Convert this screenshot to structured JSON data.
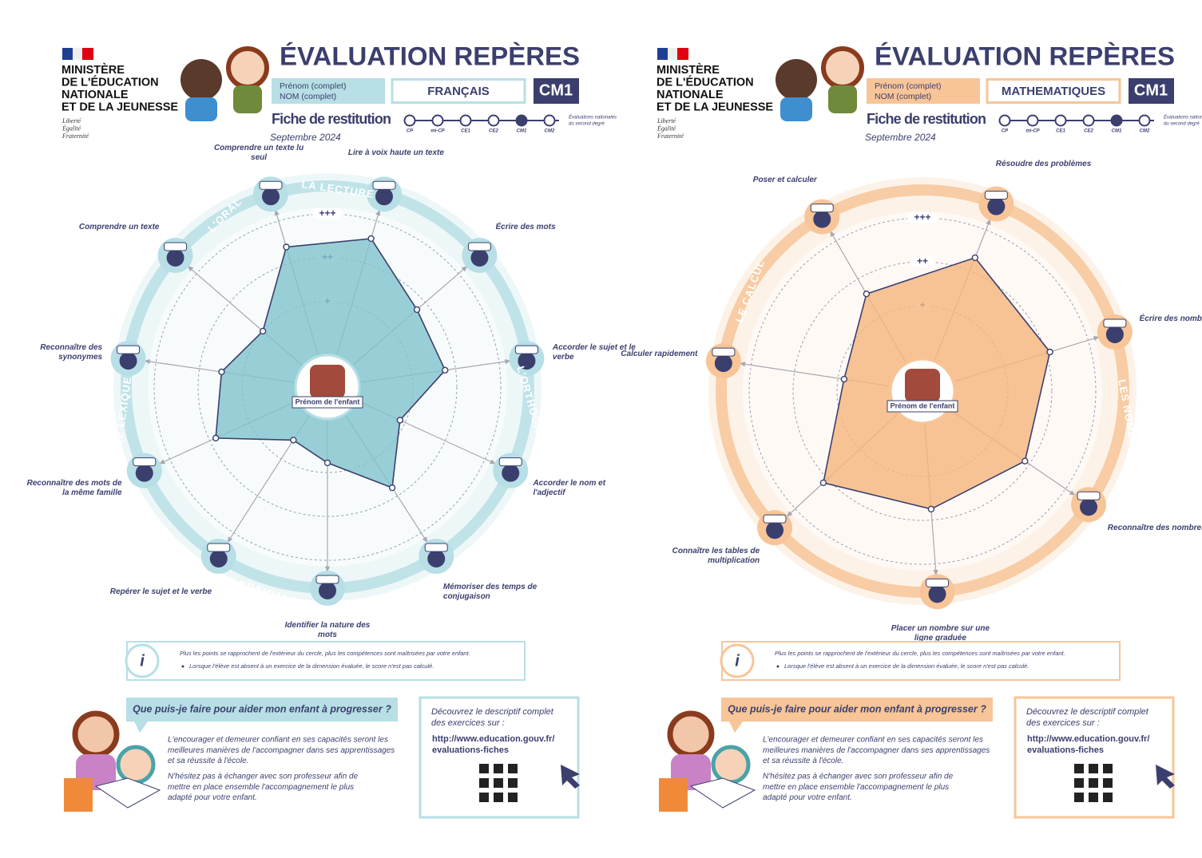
{
  "chart_data": [
    {
      "type": "radar",
      "categories": [
        "Comprendre un texte lu seul",
        "Lire à voix haute un texte",
        "Écrire des mots",
        "Accorder le sujet et le verbe",
        "Accorder le nom et l'adjectif",
        "Mémoriser des temps de conjugaison",
        "Identifier la nature des mots",
        "Repérer le sujet et le verbe",
        "Reconnaître des mots de la même famille",
        "Reconnaître des synonymes",
        "Comprendre un texte"
      ],
      "values": [
        2.38,
        2.58,
        1.75,
        1.76,
        0.87,
        1.78,
        0.78,
        0.49,
        1.85,
        1.49,
        1.0
      ],
      "rlim": [
        0,
        3
      ],
      "rticks": [
        {
          "value": 1,
          "label": "+"
        },
        {
          "value": 2,
          "label": "++"
        },
        {
          "value": 3,
          "label": "+++"
        }
      ],
      "groups": [
        "LA LECTURE",
        "L'ORAL",
        "L'ORTHOGRAPHE",
        "LA GRAMMAIRE",
        "LE LEXIQUE"
      ],
      "center_label": "Prénom de l'enfant",
      "color": "#7fc4cc",
      "line_color": "#3b3f6e",
      "accent": "#b7dfe5",
      "background": "#eef7f8"
    },
    {
      "type": "radar",
      "categories": [
        "Résoudre des problèmes",
        "Écrire des nombres",
        "Reconnaître des nombres",
        "Placer un nombre sur une ligne graduée",
        "Connaître les tables de multiplication",
        "Calculer rapidement",
        "Poser et calculer"
      ],
      "values": [
        2.32,
        2.09,
        1.88,
        1.75,
        2.13,
        0.86,
        1.61
      ],
      "rlim": [
        0,
        3
      ],
      "rticks": [
        {
          "value": 1,
          "label": "+"
        },
        {
          "value": 2,
          "label": "++"
        },
        {
          "value": 3,
          "label": "+++"
        }
      ],
      "groups": [
        "LE CALCUL",
        "LES NOMBRES"
      ],
      "center_label": "Prénom de l'enfant",
      "color": "#f5b57d",
      "line_color": "#3b3f6e",
      "accent": "#f7c598",
      "background": "#fdf2e8"
    }
  ],
  "sheets": [
    {
      "ministry": [
        "MINISTÈRE",
        "DE L'ÉDUCATION",
        "NATIONALE",
        "ET DE LA JEUNESSE"
      ],
      "motto": [
        "Liberté",
        "Égalité",
        "Fraternité"
      ],
      "title": "ÉVALUATION REPÈRES",
      "name_fields": [
        "Prénom (complet)",
        "NOM (complet)"
      ],
      "subject": "FRANÇAIS",
      "level": "CM1",
      "sheet_label": "Fiche de restitution",
      "timeline": [
        "CP",
        "mi-CP",
        "CE1",
        "CE2",
        "CM1",
        "CM2"
      ],
      "timeline_note": [
        "Évaluations nationales",
        "du second degré"
      ],
      "date": "Septembre 2024",
      "info": [
        "Plus les points se rapprochent de l'extérieur du cercle, plus les compétences sont maîtrisées par votre enfant.",
        "Lorsque l'élève est absent à un exercice de la dimension évaluée, le score n'est pas calculé."
      ],
      "question": "Que puis-je faire pour aider mon enfant à progresser ?",
      "advice": [
        [
          "L'encourager et demeurer confiant en ses capacités seront les",
          "meilleures manières de l'accompagner dans ses apprentissages",
          "et sa réussite à l'école."
        ],
        [
          "N'hésitez pas à échanger avec son professeur afin de",
          "mettre en place ensemble l'accompagnement le plus",
          "adapté pour votre enfant."
        ]
      ],
      "link_intro": [
        "Découvrez le descriptif complet",
        "des exercices sur :"
      ],
      "link": [
        "http://www.education.gouv.fr/",
        "evaluations-fiches"
      ]
    },
    {
      "ministry": [
        "MINISTÈRE",
        "DE L'ÉDUCATION",
        "NATIONALE",
        "ET DE LA JEUNESSE"
      ],
      "motto": [
        "Liberté",
        "Égalité",
        "Fraternité"
      ],
      "title": "ÉVALUATION REPÈRES",
      "name_fields": [
        "Prénom (complet)",
        "NOM (complet)"
      ],
      "subject": "MATHEMATIQUES",
      "level": "CM1",
      "sheet_label": "Fiche de restitution",
      "timeline": [
        "CP",
        "mi-CP",
        "CE1",
        "CE2",
        "CM1",
        "CM2"
      ],
      "timeline_note": [
        "Évaluations nationales",
        "du second degré"
      ],
      "date": "Septembre 2024",
      "info": [
        "Plus les points se rapprochent de l'extérieur du cercle, plus les compétences sont maîtrisées par votre enfant.",
        "Lorsque l'élève est absent à un exercice de la dimension évaluée, le score n'est pas calculé."
      ],
      "question": "Que puis-je faire pour aider mon enfant à progresser ?",
      "advice": [
        [
          "L'encourager et demeurer confiant en ses capacités seront les",
          "meilleures manières de l'accompagner dans ses apprentissages",
          "et sa réussite à l'école."
        ],
        [
          "N'hésitez pas à échanger avec son professeur afin de",
          "mettre en place ensemble l'accompagnement le plus",
          "adapté pour votre enfant."
        ]
      ],
      "link_intro": [
        "Découvrez le descriptif complet",
        "des exercices sur :"
      ],
      "link": [
        "http://www.education.gouv.fr/",
        "evaluations-fiches"
      ]
    }
  ]
}
